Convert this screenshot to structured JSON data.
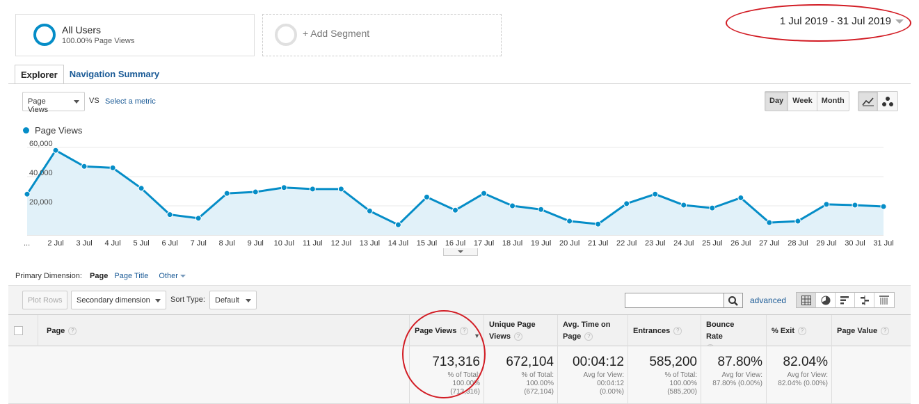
{
  "segments": {
    "all_users": {
      "title": "All Users",
      "subtitle": "100.00% Page Views"
    },
    "add_segment": "+ Add Segment"
  },
  "date_range": "1 Jul 2019 - 31 Jul 2019",
  "tabs": [
    "Explorer",
    "Navigation Summary"
  ],
  "metric_selector": {
    "value": "Page Views",
    "vs": "VS",
    "select_metric": "Select a metric"
  },
  "granularity": [
    "Day",
    "Week",
    "Month"
  ],
  "chart_data": {
    "type": "line",
    "series": [
      {
        "name": "Page Views",
        "values": [
          28000,
          58000,
          47000,
          46000,
          32000,
          14000,
          11500,
          28500,
          29500,
          32500,
          31500,
          31500,
          16500,
          7000,
          26000,
          17000,
          28500,
          20000,
          17500,
          9500,
          7500,
          21500,
          28000,
          20500,
          18500,
          25500,
          8500,
          9500,
          21000,
          20500,
          19500
        ]
      }
    ],
    "categories": [
      "...",
      "2 Jul",
      "3 Jul",
      "4 Jul",
      "5 Jul",
      "6 Jul",
      "7 Jul",
      "8 Jul",
      "9 Jul",
      "10 Jul",
      "11 Jul",
      "12 Jul",
      "13 Jul",
      "14 Jul",
      "15 Jul",
      "16 Jul",
      "17 Jul",
      "18 Jul",
      "19 Jul",
      "20 Jul",
      "21 Jul",
      "22 Jul",
      "23 Jul",
      "24 Jul",
      "25 Jul",
      "26 Jul",
      "27 Jul",
      "28 Jul",
      "29 Jul",
      "30 Jul",
      "31 Jul"
    ],
    "y_ticks": [
      "20,000",
      "40,000",
      "60,000"
    ],
    "ylim": [
      0,
      60000
    ],
    "grid": true,
    "color": "#058dc7",
    "fill": "#e1f1f9"
  },
  "primary_dimension": {
    "label": "Primary Dimension:",
    "current": "Page",
    "options": [
      "Page Title",
      "Other"
    ]
  },
  "toolbar": {
    "plot_rows": "Plot Rows",
    "secondary_dimension": "Secondary dimension",
    "sort_type_label": "Sort Type:",
    "sort_type_value": "Default",
    "advanced": "advanced"
  },
  "table": {
    "columns": {
      "page": "Page",
      "page_views": "Page Views",
      "unique_page_views": "Unique Page Views",
      "avg_time": "Avg. Time on Page",
      "entrances": "Entrances",
      "bounce_rate": "Bounce Rate",
      "exit": "% Exit",
      "page_value": "Page Value"
    },
    "totals": {
      "page_views": {
        "value": "713,316",
        "l1": "% of Total:",
        "l2": "100.00%",
        "l3": "(713,316)"
      },
      "unique_page_views": {
        "value": "672,104",
        "l1": "% of Total:",
        "l2": "100.00%",
        "l3": "(672,104)"
      },
      "avg_time": {
        "value": "00:04:12",
        "l1": "Avg for View:",
        "l2": "00:04:12",
        "l3": "(0.00%)"
      },
      "entrances": {
        "value": "585,200",
        "l1": "% of Total:",
        "l2": "100.00%",
        "l3": "(585,200)"
      },
      "bounce_rate": {
        "value": "87.80%",
        "l1": "Avg for View:",
        "l2": "87.80% (0.00%)"
      },
      "exit": {
        "value": "82.04%",
        "l1": "Avg for View:",
        "l2": "82.04% (0.00%)"
      }
    }
  },
  "annotation_color": "#d21c24"
}
